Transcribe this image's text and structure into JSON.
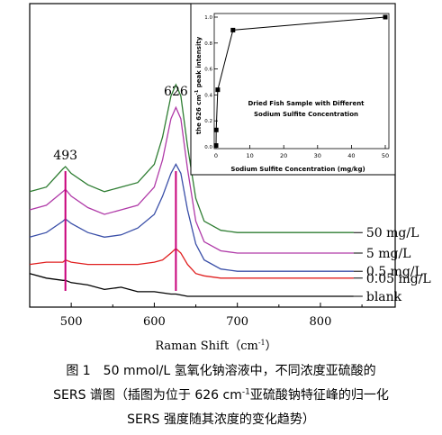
{
  "chart_data": [
    {
      "type": "line",
      "title": "",
      "xlabel_pre": "Raman Shift（cm",
      "xlabel_sup": "-1",
      "xlabel_post": "）",
      "ylabel": "",
      "xlim": [
        450,
        890
      ],
      "xticks": [
        "500",
        "600",
        "700",
        "800"
      ],
      "grid": false,
      "legend": "none",
      "annotations": [
        {
          "text": "493",
          "x": 493,
          "color": "#c8007a"
        },
        {
          "text": "626",
          "x": 626,
          "color": "#c8007a"
        }
      ],
      "series": [
        {
          "name": "50 mg/L",
          "color": "#2e7d32",
          "x": [
            450,
            470,
            490,
            493,
            500,
            520,
            540,
            560,
            580,
            600,
            610,
            620,
            626,
            632,
            640,
            650,
            660,
            680,
            700,
            720,
            740,
            760,
            780,
            800,
            820,
            840
          ],
          "y": [
            0.58,
            0.6,
            0.68,
            0.69,
            0.66,
            0.61,
            0.58,
            0.6,
            0.62,
            0.7,
            0.82,
            1.0,
            1.05,
            1.0,
            0.78,
            0.55,
            0.45,
            0.41,
            0.4,
            0.4,
            0.4,
            0.4,
            0.4,
            0.4,
            0.4,
            0.4
          ]
        },
        {
          "name": "5 mg/L",
          "color": "#b03aa8",
          "x": [
            450,
            470,
            490,
            493,
            500,
            520,
            540,
            560,
            580,
            600,
            610,
            620,
            626,
            632,
            640,
            650,
            660,
            680,
            700,
            720,
            740,
            760,
            780,
            800,
            820,
            840
          ],
          "y": [
            0.5,
            0.52,
            0.58,
            0.59,
            0.56,
            0.51,
            0.48,
            0.5,
            0.52,
            0.6,
            0.72,
            0.9,
            0.95,
            0.9,
            0.68,
            0.45,
            0.36,
            0.32,
            0.31,
            0.31,
            0.31,
            0.31,
            0.31,
            0.31,
            0.31,
            0.31
          ]
        },
        {
          "name": "0.5 mg/L",
          "color": "#3a4fa8",
          "x": [
            450,
            470,
            490,
            493,
            500,
            520,
            540,
            560,
            580,
            600,
            610,
            620,
            626,
            632,
            640,
            650,
            660,
            680,
            700,
            720,
            740,
            760,
            780,
            800,
            820,
            840
          ],
          "y": [
            0.38,
            0.4,
            0.45,
            0.46,
            0.44,
            0.4,
            0.38,
            0.39,
            0.42,
            0.48,
            0.56,
            0.66,
            0.7,
            0.66,
            0.5,
            0.35,
            0.28,
            0.24,
            0.23,
            0.23,
            0.23,
            0.23,
            0.23,
            0.23,
            0.23,
            0.23
          ]
        },
        {
          "name": "0.05 mg/L",
          "color": "#e02020",
          "x": [
            450,
            470,
            490,
            493,
            500,
            520,
            540,
            560,
            580,
            600,
            610,
            620,
            626,
            632,
            640,
            650,
            660,
            680,
            700,
            720,
            740,
            760,
            780,
            800,
            820,
            840
          ],
          "y": [
            0.26,
            0.27,
            0.27,
            0.28,
            0.27,
            0.26,
            0.26,
            0.26,
            0.26,
            0.27,
            0.28,
            0.31,
            0.33,
            0.31,
            0.26,
            0.22,
            0.21,
            0.2,
            0.2,
            0.2,
            0.2,
            0.2,
            0.2,
            0.2,
            0.2,
            0.2
          ]
        },
        {
          "name": "blank",
          "color": "#000000",
          "x": [
            450,
            470,
            490,
            493,
            500,
            520,
            540,
            560,
            580,
            600,
            620,
            626,
            640,
            660,
            680,
            700,
            720,
            740,
            760,
            780,
            800,
            820,
            840
          ],
          "y": [
            0.22,
            0.2,
            0.19,
            0.19,
            0.18,
            0.17,
            0.15,
            0.16,
            0.14,
            0.14,
            0.13,
            0.13,
            0.12,
            0.12,
            0.12,
            0.12,
            0.12,
            0.12,
            0.12,
            0.12,
            0.12,
            0.12,
            0.12
          ]
        }
      ]
    },
    {
      "type": "line",
      "title_line1": "Dried Fish Sample with Different",
      "title_line2": "Sodium Sulfite Concentration",
      "xlabel": "Sodium Sulfite Concentration (mg/kg)",
      "ylabel_pre": "the 626 cm",
      "ylabel_sup": "-1",
      "ylabel_post": " peak intensity",
      "xlim": [
        0,
        50
      ],
      "ylim": [
        0,
        1.0
      ],
      "xticks": [
        "0",
        "10",
        "20",
        "30",
        "40",
        "50"
      ],
      "yticks": [
        "0.0",
        "0.2",
        "0.4",
        "0.6",
        "0.8",
        "1.0"
      ],
      "grid": false,
      "series": [
        {
          "x": [
            0,
            0.05,
            0.5,
            5,
            50
          ],
          "y": [
            0.01,
            0.13,
            0.44,
            0.9,
            1.0
          ]
        }
      ]
    }
  ],
  "caption": {
    "line1": "图 1　50 mmol/L 氢氧化钠溶液中，不同浓度亚硫酸的",
    "line2_pre": "SERS 谱图（插图为位于 626 cm",
    "line2_sup": "-1",
    "line2_post": "亚硫酸钠特征峰的归一化",
    "line3": "SERS 强度随其浓度的变化趋势）"
  }
}
